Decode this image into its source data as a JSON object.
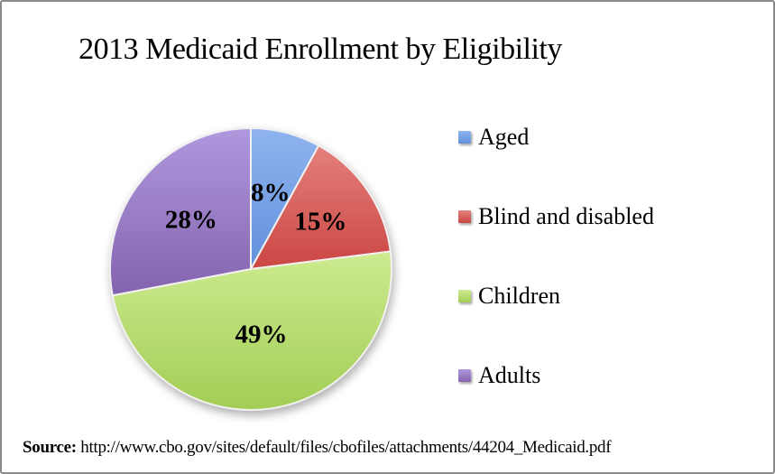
{
  "title": "2013 Medicaid Enrollment by Eligibility",
  "chart_data": {
    "type": "pie",
    "title": "2013 Medicaid Enrollment by Eligibility",
    "categories": [
      "Aged",
      "Blind and disabled",
      "Children",
      "Adults"
    ],
    "values": [
      8,
      15,
      49,
      28
    ],
    "unit": "%",
    "slice_labels": [
      "8%",
      "15%",
      "49%",
      "28%"
    ],
    "colors": [
      {
        "name": "blue",
        "light": "#8FB4EF",
        "dark": "#6190DC"
      },
      {
        "name": "red",
        "light": "#E4807B",
        "dark": "#CB4643"
      },
      {
        "name": "green",
        "light": "#CDEB90",
        "dark": "#A2CD55"
      },
      {
        "name": "purple",
        "light": "#AF98DD",
        "dark": "#8463AE"
      }
    ],
    "start_angle_deg": 0,
    "direction": "clockwise",
    "legend_position": "right",
    "label_color": "#000000",
    "separator_color": "#F2F0F0"
  },
  "source": {
    "label": "Source:",
    "url": "http://www.cbo.gov/sites/default/files/cbofiles/attachments/44204_Medicaid.pdf"
  }
}
